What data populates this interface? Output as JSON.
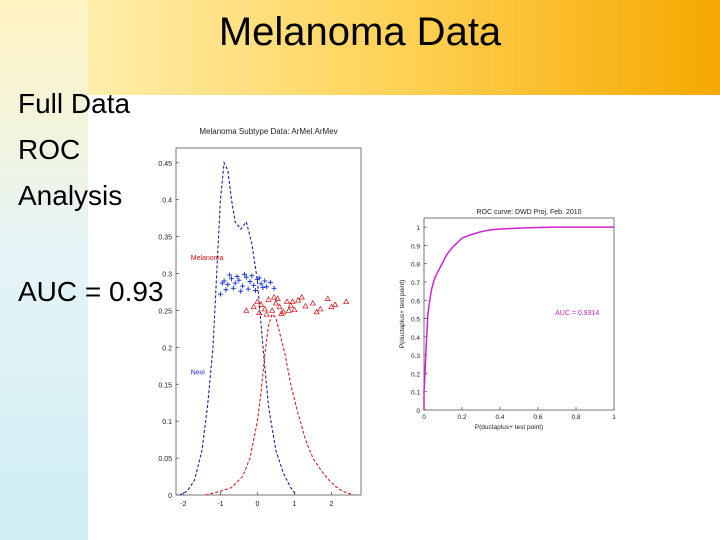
{
  "slide": {
    "title": "Melanoma Data",
    "lines": [
      "Full Data",
      "ROC",
      "Analysis"
    ],
    "auc": "AUC = 0.93"
  },
  "chart_data": [
    {
      "type": "line",
      "title": "Melanoma Subtype Data: ArMel.ArMev",
      "xlabel": "",
      "ylabel": "",
      "xlim": [
        -2.2,
        2.8
      ],
      "ylim": [
        0,
        0.47
      ],
      "xticks": [
        "-2",
        "-1",
        "0",
        "1",
        "2"
      ],
      "yticks": [
        "0",
        "0.05",
        "0.1",
        "0.15",
        "0.2",
        "0.25",
        "0.3",
        "0.35",
        "0.4",
        "0.45"
      ],
      "annotations": [
        {
          "text": "Melanoma",
          "color": "#d01010"
        },
        {
          "text": "Nevi",
          "color": "#2020c0"
        }
      ],
      "series": [
        {
          "color": "#2020a0",
          "x": [
            -2.1,
            -1.9,
            -1.7,
            -1.5,
            -1.35,
            -1.2,
            -1.1,
            -1.0,
            -0.9,
            -0.8,
            -0.7,
            -0.6,
            -0.45,
            -0.3,
            -0.15,
            0.0,
            0.15,
            0.3,
            0.5,
            0.7,
            0.9,
            1.05
          ],
          "y": [
            0.0,
            0.005,
            0.02,
            0.06,
            0.12,
            0.2,
            0.3,
            0.4,
            0.45,
            0.44,
            0.4,
            0.37,
            0.36,
            0.37,
            0.34,
            0.29,
            0.2,
            0.12,
            0.06,
            0.03,
            0.01,
            0.0
          ]
        },
        {
          "color": "#d02020",
          "x": [
            -1.4,
            -1.0,
            -0.7,
            -0.4,
            -0.2,
            0.0,
            0.1,
            0.2,
            0.3,
            0.4,
            0.5,
            0.6,
            0.75,
            0.9,
            1.1,
            1.3,
            1.5,
            1.7,
            1.9,
            2.1,
            2.3,
            2.6
          ],
          "y": [
            0.0,
            0.005,
            0.01,
            0.025,
            0.05,
            0.1,
            0.14,
            0.19,
            0.23,
            0.245,
            0.24,
            0.22,
            0.19,
            0.15,
            0.11,
            0.075,
            0.05,
            0.035,
            0.022,
            0.012,
            0.005,
            0.0
          ]
        }
      ],
      "scatter_blue": {
        "marker": "+",
        "color": "#1030d0",
        "x": [
          -0.9,
          -0.8,
          -0.7,
          -0.6,
          -0.5,
          -0.4,
          -0.3,
          -0.2,
          -0.1,
          0.0,
          0.1,
          0.2,
          -0.85,
          -0.65,
          -0.45,
          -0.25,
          -0.05,
          0.15,
          -0.75,
          -0.55,
          -0.35,
          -0.15,
          0.05,
          0.25,
          -1.0,
          -0.95,
          0.35,
          0.45
        ],
        "y": [
          0.29,
          0.285,
          0.293,
          0.287,
          0.291,
          0.283,
          0.295,
          0.289,
          0.284,
          0.292,
          0.286,
          0.29,
          0.278,
          0.28,
          0.276,
          0.279,
          0.277,
          0.281,
          0.298,
          0.296,
          0.299,
          0.297,
          0.294,
          0.282,
          0.272,
          0.287,
          0.288,
          0.28
        ]
      },
      "scatter_red": {
        "marker": "triangle",
        "color": "#d01010",
        "x": [
          -0.3,
          -0.1,
          0.0,
          0.1,
          0.2,
          0.3,
          0.4,
          0.5,
          0.6,
          0.7,
          0.8,
          0.9,
          1.0,
          1.1,
          1.3,
          1.5,
          1.7,
          1.9,
          2.1,
          2.4,
          0.25,
          0.45,
          0.65,
          0.85,
          1.2,
          1.6,
          2.0,
          0.05,
          0.55,
          0.95
        ],
        "y": [
          0.25,
          0.255,
          0.262,
          0.258,
          0.252,
          0.265,
          0.25,
          0.26,
          0.255,
          0.248,
          0.262,
          0.257,
          0.251,
          0.264,
          0.256,
          0.26,
          0.252,
          0.266,
          0.258,
          0.262,
          0.245,
          0.268,
          0.246,
          0.25,
          0.268,
          0.248,
          0.255,
          0.247,
          0.266,
          0.262
        ]
      }
    },
    {
      "type": "line",
      "title": "ROC curve: DWD Proj, Feb. 2010",
      "xlabel": "P(ductaplus+ test point)",
      "ylabel": "P(ductaplus+ test point)",
      "xlim": [
        0,
        1
      ],
      "ylim": [
        0,
        1.05
      ],
      "xticks": [
        "0",
        "0.2",
        "0.4",
        "0.6",
        "0.8",
        "1"
      ],
      "yticks": [
        "0",
        "0.1",
        "0.2",
        "0.3",
        "0.4",
        "0.5",
        "0.6",
        "0.7",
        "0.8",
        "0.9",
        "1"
      ],
      "annotations": [
        {
          "text": "AUC = 0.9314",
          "color": "#d020d0"
        }
      ],
      "series": [
        {
          "color": "#d020d0",
          "x": [
            0,
            0.0,
            0.005,
            0.01,
            0.015,
            0.02,
            0.03,
            0.04,
            0.05,
            0.06,
            0.08,
            0.1,
            0.12,
            0.15,
            0.18,
            0.2,
            0.25,
            0.3,
            0.35,
            0.4,
            0.5,
            0.6,
            0.7,
            0.8,
            0.9,
            1.0
          ],
          "y": [
            0,
            0.1,
            0.2,
            0.32,
            0.42,
            0.52,
            0.6,
            0.66,
            0.7,
            0.73,
            0.77,
            0.81,
            0.85,
            0.89,
            0.92,
            0.94,
            0.96,
            0.975,
            0.985,
            0.99,
            0.995,
            0.998,
            1.0,
            1.0,
            1.0,
            1.0
          ]
        }
      ]
    }
  ]
}
